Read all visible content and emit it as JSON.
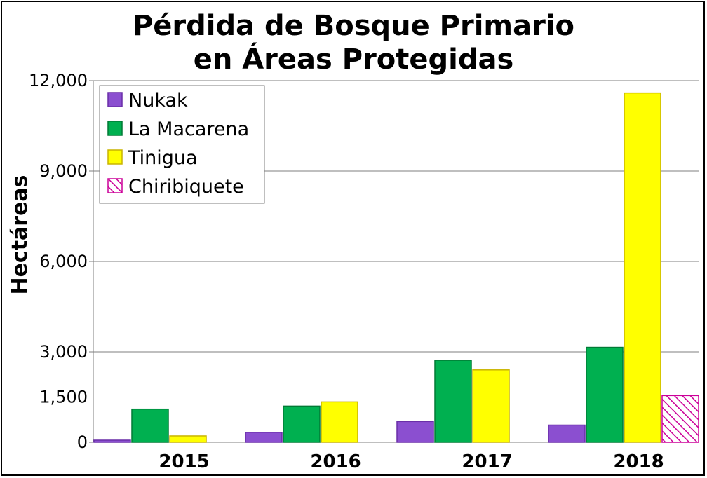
{
  "chart_data": {
    "type": "bar",
    "title_line1": "Pérdida de Bosque Primario",
    "title_line2": "en Áreas Protegidas",
    "xlabel": "",
    "ylabel": "Hectáreas",
    "categories": [
      "2015",
      "2016",
      "2017",
      "2018"
    ],
    "ylim": [
      0,
      12000
    ],
    "yticks": [
      0,
      1500,
      3000,
      6000,
      9000,
      12000
    ],
    "ytick_labels": [
      "0",
      "1,500",
      "3,000",
      "6,000",
      "9,000",
      "12,000"
    ],
    "grid": true,
    "legend_position": "top-left",
    "series": [
      {
        "name": "Nukak",
        "values": [
          70,
          330,
          690,
          570
        ],
        "color": "#8b4fd0",
        "border": "#6a2fa8",
        "hatch": false
      },
      {
        "name": "La Macarena",
        "values": [
          1100,
          1200,
          2720,
          3150
        ],
        "color": "#00b050",
        "border": "#007a35",
        "hatch": false
      },
      {
        "name": "Tinigua",
        "values": [
          210,
          1340,
          2400,
          11590
        ],
        "color": "#ffff00",
        "border": "#c9b400",
        "hatch": false
      },
      {
        "name": "Chiribiquete",
        "values": [
          0,
          0,
          0,
          1550
        ],
        "color": "#cc0099",
        "border": "#cc0099",
        "hatch": true
      }
    ]
  }
}
